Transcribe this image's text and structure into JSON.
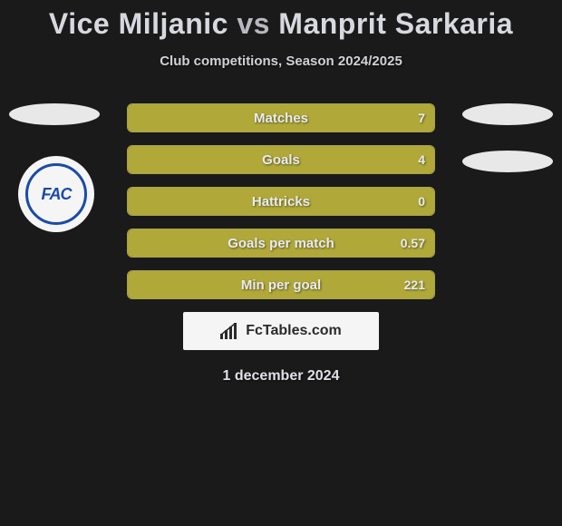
{
  "title": {
    "player1": "Vice Miljanic",
    "vs": "vs",
    "player2": "Manprit Sarkaria",
    "color_p1": "#d8d8e0",
    "color_vs": "#b8b8c0",
    "color_p2": "#d8d8e0"
  },
  "subtitle": "Club competitions, Season 2024/2025",
  "club_badge": {
    "text": "FAC",
    "ring_color": "#1a4ba8",
    "text_color": "#1a4ba8",
    "bg_color": "#f5f5f5"
  },
  "stats_border_color": "#a8a24a",
  "stats_fill_color": "#b0a93a",
  "stats": [
    {
      "label": "Matches",
      "value": "7",
      "fill_pct": 100
    },
    {
      "label": "Goals",
      "value": "4",
      "fill_pct": 100
    },
    {
      "label": "Hattricks",
      "value": "0",
      "fill_pct": 100
    },
    {
      "label": "Goals per match",
      "value": "0.57",
      "fill_pct": 100
    },
    {
      "label": "Min per goal",
      "value": "221",
      "fill_pct": 100
    }
  ],
  "logo": {
    "text": "FcTables.com",
    "icon_color": "#2a2a2a",
    "box_bg": "#f5f5f5"
  },
  "date": "1 december 2024",
  "background_color": "#1a1a1a"
}
